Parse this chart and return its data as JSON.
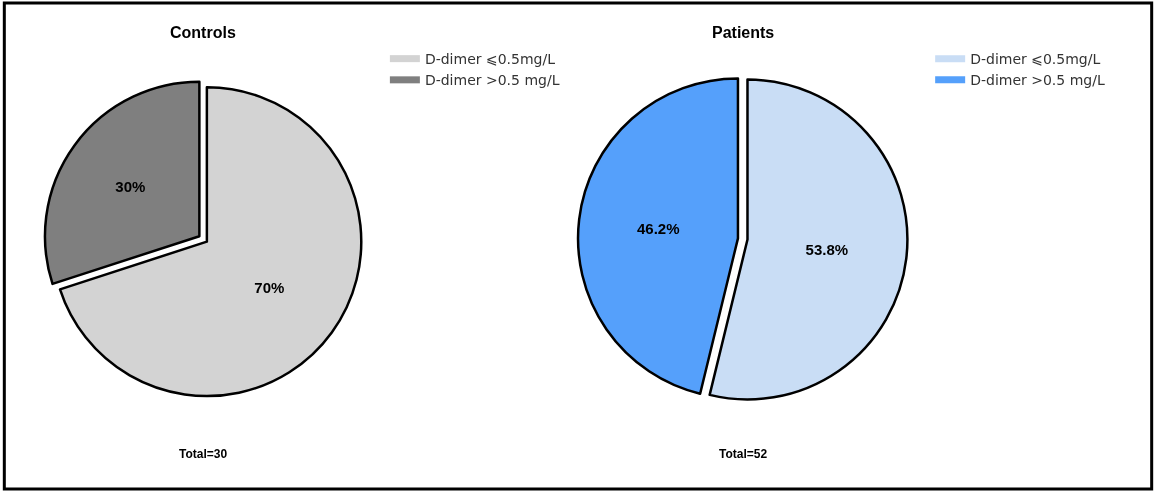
{
  "chart_data": [
    {
      "type": "pie",
      "title": "Controls",
      "categories": [
        "D-dimer ⩽0.5mg/L",
        "D-dimer >0.5 mg/L"
      ],
      "values": [
        70,
        30
      ],
      "colors": [
        "#d3d3d3",
        "#7f7f7f"
      ],
      "value_labels": [
        "70%",
        "30%"
      ],
      "legend": "right",
      "annotations": [
        "Total=30"
      ]
    },
    {
      "type": "pie",
      "title": "Patients",
      "categories": [
        "D-dimer ⩽0.5mg/L",
        "D-dimer >0.5 mg/L"
      ],
      "values": [
        53.8,
        46.2
      ],
      "colors": [
        "#c9ddf5",
        "#55a0fb"
      ],
      "value_labels": [
        "53.8%",
        "46.2%"
      ],
      "legend": "right",
      "annotations": [
        "Total=52"
      ]
    }
  ]
}
